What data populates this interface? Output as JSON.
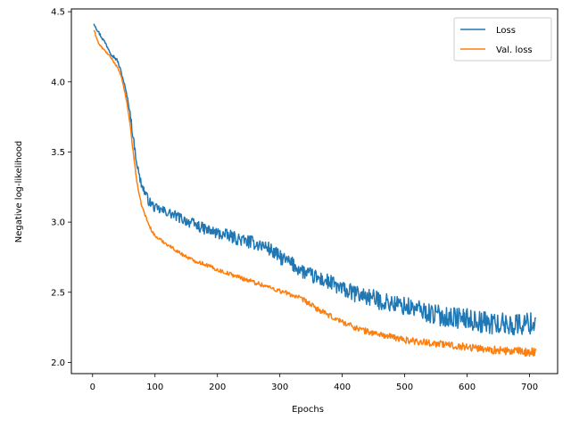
{
  "chart_data": {
    "type": "line",
    "title": "",
    "xlabel": "Epochs",
    "ylabel": "Negative log-likelihood",
    "xlim": [
      -34,
      745
    ],
    "ylim": [
      1.92,
      4.52
    ],
    "xticks": [
      0,
      100,
      200,
      300,
      400,
      500,
      600,
      700
    ],
    "xtick_labels": [
      "0",
      "100",
      "200",
      "300",
      "400",
      "500",
      "600",
      "700"
    ],
    "yticks": [
      2.0,
      2.5,
      3.0,
      3.5,
      4.0,
      4.5
    ],
    "ytick_labels": [
      "2.0",
      "2.5",
      "3.0",
      "3.5",
      "4.0",
      "4.5"
    ],
    "grid": false,
    "legend_position": "top-right",
    "series": [
      {
        "name": "Loss",
        "color": "#1f77b4",
        "x": [
          2,
          10,
          20,
          30,
          40,
          45,
          50,
          55,
          60,
          65,
          70,
          75,
          80,
          90,
          100,
          120,
          140,
          160,
          180,
          200,
          220,
          240,
          260,
          280,
          300,
          320,
          340,
          360,
          380,
          400,
          420,
          440,
          460,
          480,
          500,
          520,
          540,
          560,
          580,
          600,
          620,
          640,
          660,
          680,
          700,
          710
        ],
        "y": [
          4.42,
          4.35,
          4.28,
          4.2,
          4.15,
          4.08,
          4.0,
          3.9,
          3.78,
          3.6,
          3.45,
          3.32,
          3.25,
          3.15,
          3.1,
          3.07,
          3.03,
          2.99,
          2.95,
          2.92,
          2.9,
          2.87,
          2.85,
          2.82,
          2.75,
          2.7,
          2.64,
          2.6,
          2.57,
          2.52,
          2.49,
          2.47,
          2.44,
          2.42,
          2.4,
          2.38,
          2.35,
          2.33,
          2.32,
          2.31,
          2.29,
          2.28,
          2.27,
          2.27,
          2.28,
          2.28
        ]
      },
      {
        "name": "Val. loss",
        "color": "#ff7f0e",
        "x": [
          2,
          10,
          20,
          30,
          40,
          45,
          50,
          55,
          60,
          65,
          70,
          75,
          80,
          90,
          100,
          120,
          140,
          160,
          180,
          200,
          220,
          240,
          260,
          280,
          300,
          320,
          340,
          360,
          380,
          400,
          420,
          440,
          460,
          480,
          500,
          520,
          540,
          560,
          580,
          600,
          620,
          640,
          660,
          680,
          700,
          710
        ],
        "y": [
          4.37,
          4.27,
          4.22,
          4.17,
          4.1,
          4.05,
          3.96,
          3.85,
          3.7,
          3.5,
          3.32,
          3.18,
          3.1,
          2.98,
          2.9,
          2.84,
          2.78,
          2.73,
          2.7,
          2.66,
          2.63,
          2.6,
          2.57,
          2.54,
          2.51,
          2.48,
          2.44,
          2.38,
          2.33,
          2.29,
          2.25,
          2.22,
          2.2,
          2.18,
          2.16,
          2.15,
          2.14,
          2.13,
          2.12,
          2.11,
          2.1,
          2.09,
          2.08,
          2.08,
          2.07,
          2.08
        ]
      }
    ]
  }
}
